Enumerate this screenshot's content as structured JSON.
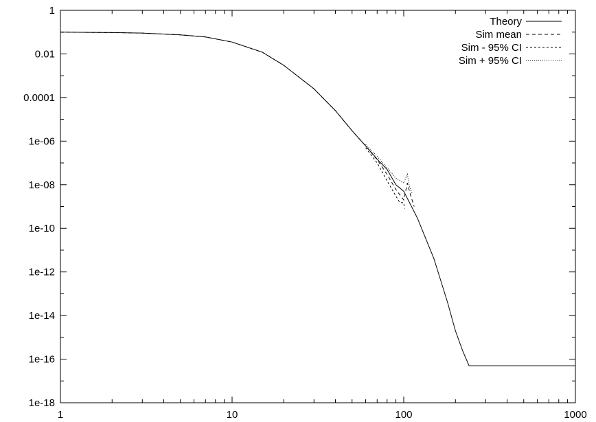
{
  "chart_data": {
    "type": "line",
    "title": "",
    "xlabel": "",
    "ylabel": "",
    "xscale": "log",
    "yscale": "log",
    "xlim": [
      1,
      1000
    ],
    "ylim": [
      1e-18,
      1
    ],
    "grid": false,
    "legend": "top-right",
    "x_tick_labels": [
      "1",
      "10",
      "100",
      "1000"
    ],
    "y_tick_labels": [
      "1",
      "0.01",
      "0.0001",
      "1e-06",
      "1e-08",
      "1e-10",
      "1e-12",
      "1e-14",
      "1e-16",
      "1e-18"
    ],
    "series": [
      {
        "name": "Theory",
        "dash": "solid",
        "x": [
          1,
          2,
          3,
          5,
          7,
          10,
          15,
          20,
          30,
          40,
          50,
          60,
          70,
          80,
          90,
          100,
          120,
          150,
          180,
          200,
          220,
          240,
          260,
          300,
          500,
          1000
        ],
        "y": [
          0.1,
          0.095,
          0.09,
          0.075,
          0.06,
          0.035,
          0.012,
          0.003,
          0.00025,
          2.5e-05,
          3e-06,
          6e-07,
          1.5e-07,
          5e-08,
          1e-08,
          5e-09,
          3e-10,
          4e-12,
          4e-14,
          2e-15,
          2.5e-16,
          5e-17,
          5e-17,
          5e-17,
          5e-17,
          5e-17
        ]
      },
      {
        "name": "Sim mean",
        "dash": "5,4",
        "x": [
          1,
          2,
          3,
          5,
          7,
          10,
          15,
          20,
          30,
          40,
          50,
          60,
          70,
          80,
          90,
          100,
          105,
          110,
          115
        ],
        "y": [
          0.1,
          0.095,
          0.09,
          0.075,
          0.06,
          0.035,
          0.012,
          0.003,
          0.00025,
          2.5e-05,
          3e-06,
          6e-07,
          1.4e-07,
          3e-08,
          6e-09,
          2e-09,
          1.2e-08,
          3e-09,
          1e-09
        ]
      },
      {
        "name": "Sim - 95% CI",
        "dash": "3,3",
        "x": [
          60,
          70,
          80,
          90,
          95,
          100,
          101
        ],
        "y": [
          5e-07,
          1e-07,
          1.5e-08,
          3e-09,
          1.5e-09,
          1.5e-09,
          8e-10
        ]
      },
      {
        "name": "Sim + 95% CI",
        "dash": "1,2",
        "x": [
          60,
          70,
          80,
          90,
          100,
          105,
          108,
          112
        ],
        "y": [
          7e-07,
          2e-07,
          6e-08,
          2e-08,
          1.2e-08,
          3e-08,
          8e-09,
          4e-09
        ]
      }
    ]
  }
}
